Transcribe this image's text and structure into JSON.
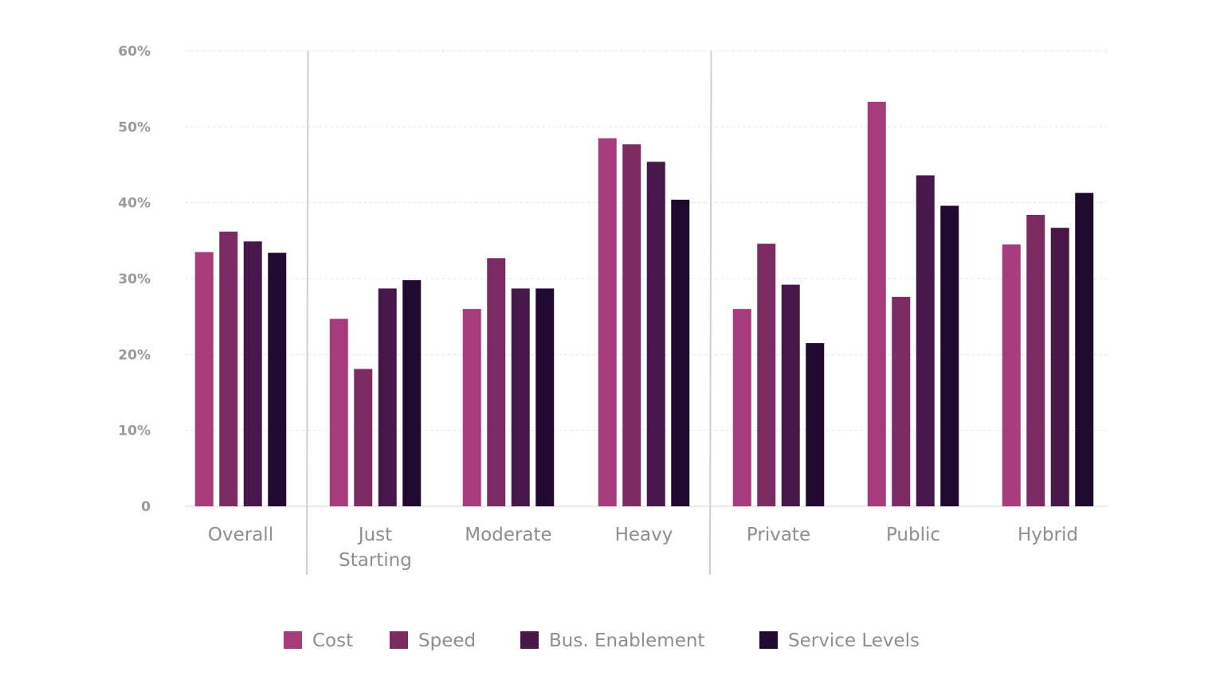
{
  "chart_data": {
    "type": "bar",
    "categories": [
      "Overall",
      "Just Starting",
      "Moderate",
      "Heavy",
      "Private",
      "Public",
      "Hybrid"
    ],
    "category_lines": [
      [
        "Overall"
      ],
      [
        "Just",
        "Starting"
      ],
      [
        "Moderate"
      ],
      [
        "Heavy"
      ],
      [
        "Private"
      ],
      [
        "Public"
      ],
      [
        "Hybrid"
      ]
    ],
    "group_separators_after": [
      0,
      3
    ],
    "series": [
      {
        "name": "Cost",
        "color": "#a63c7c",
        "values": [
          33.5,
          24.7,
          26.0,
          48.5,
          26.0,
          53.3,
          34.5
        ]
      },
      {
        "name": "Speed",
        "color": "#7c2b63",
        "values": [
          36.2,
          18.1,
          32.7,
          47.7,
          34.6,
          27.6,
          38.4
        ]
      },
      {
        "name": "Bus. Enablement",
        "color": "#48174a",
        "values": [
          34.9,
          28.7,
          28.7,
          45.4,
          29.2,
          43.6,
          36.7
        ]
      },
      {
        "name": "Service Levels",
        "color": "#210a32",
        "values": [
          33.4,
          29.8,
          28.7,
          40.4,
          21.5,
          39.6,
          41.3
        ]
      }
    ],
    "yticks": [
      "0",
      "10%",
      "20%",
      "30%",
      "40%",
      "50%",
      "60%"
    ],
    "ylim": [
      0,
      60
    ],
    "grid": true,
    "legend_position": "bottom",
    "title": "",
    "xlabel": "",
    "ylabel": ""
  }
}
